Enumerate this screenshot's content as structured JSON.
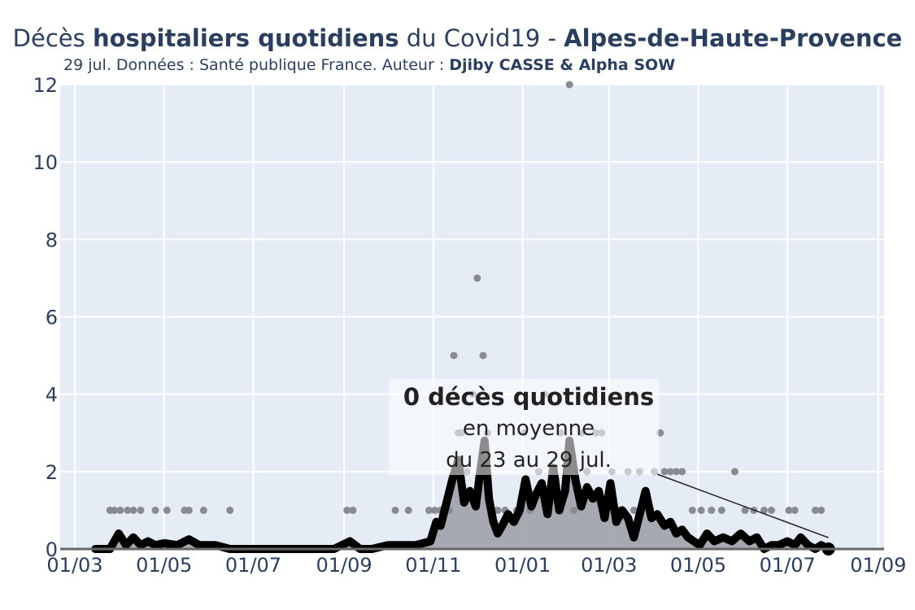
{
  "header": {
    "title_part1": "Décès ",
    "title_part2": "hospitaliers quotidiens",
    "title_part3": " du Covid19 - ",
    "title_part4": "Alpes-de-Haute-Provence",
    "subtitle_plain": "29 jul. Données : Santé publique France. Auteur : ",
    "subtitle_bold": "Djiby CASSE & Alpha SOW"
  },
  "colors": {
    "plot_bg": "#e5ecf6",
    "grid": "#ffffff",
    "line": "#000000",
    "area": "#9b9ea4",
    "points": "#888b91",
    "axis": "#2a3f5f"
  },
  "chart_data": {
    "type": "line",
    "title": "Décès hospitaliers quotidiens du Covid19 - Alpes-de-Haute-Provence",
    "subtitle": "29 jul. Données : Santé publique France. Auteur : Djiby CASSE & Alpha SOW",
    "xlabel": "",
    "ylabel": "",
    "x_range": [
      "2020-02-20",
      "2021-09-05"
    ],
    "ylim": [
      0,
      12
    ],
    "x_ticks": [
      "2020-03-01",
      "2020-05-01",
      "2020-07-01",
      "2020-09-01",
      "2020-11-01",
      "2021-01-01",
      "2021-03-01",
      "2021-05-01",
      "2021-07-01",
      "2021-09-01"
    ],
    "x_tick_labels": [
      "01/03",
      "01/05",
      "01/07",
      "01/09",
      "01/11",
      "01/01",
      "01/03",
      "01/05",
      "01/07",
      "01/09"
    ],
    "y_ticks": [
      0,
      2,
      4,
      6,
      8,
      10,
      12
    ],
    "grid": true,
    "series": [
      {
        "kind": "rolling_mean",
        "x": [
          "2020-03-15",
          "2020-03-25",
          "2020-03-31",
          "2020-04-05",
          "2020-04-10",
          "2020-04-15",
          "2020-04-20",
          "2020-04-25",
          "2020-05-01",
          "2020-05-10",
          "2020-05-18",
          "2020-05-25",
          "2020-06-05",
          "2020-06-15",
          "2020-06-25",
          "2020-07-05",
          "2020-08-01",
          "2020-08-25",
          "2020-09-05",
          "2020-09-12",
          "2020-09-20",
          "2020-10-01",
          "2020-10-10",
          "2020-10-20",
          "2020-10-30",
          "2020-11-03",
          "2020-11-06",
          "2020-11-10",
          "2020-11-14",
          "2020-11-18",
          "2020-11-22",
          "2020-11-26",
          "2020-11-30",
          "2020-12-03",
          "2020-12-06",
          "2020-12-09",
          "2020-12-12",
          "2020-12-15",
          "2020-12-18",
          "2020-12-22",
          "2020-12-26",
          "2020-12-30",
          "2021-01-03",
          "2021-01-07",
          "2021-01-10",
          "2021-01-14",
          "2021-01-18",
          "2021-01-22",
          "2021-01-26",
          "2021-01-30",
          "2021-02-02",
          "2021-02-06",
          "2021-02-10",
          "2021-02-14",
          "2021-02-18",
          "2021-02-22",
          "2021-02-26",
          "2021-03-02",
          "2021-03-06",
          "2021-03-10",
          "2021-03-14",
          "2021-03-18",
          "2021-03-22",
          "2021-03-26",
          "2021-03-30",
          "2021-04-03",
          "2021-04-08",
          "2021-04-12",
          "2021-04-16",
          "2021-04-20",
          "2021-04-24",
          "2021-04-28",
          "2021-05-02",
          "2021-05-07",
          "2021-05-12",
          "2021-05-18",
          "2021-05-24",
          "2021-05-30",
          "2021-06-05",
          "2021-06-10",
          "2021-06-15",
          "2021-06-20",
          "2021-06-25",
          "2021-07-01",
          "2021-07-06",
          "2021-07-10",
          "2021-07-15",
          "2021-07-20",
          "2021-07-24",
          "2021-07-29"
        ],
        "values": [
          0,
          0,
          0.4,
          0.1,
          0.3,
          0.1,
          0.2,
          0.1,
          0.15,
          0.1,
          0.25,
          0.1,
          0.1,
          0,
          0,
          0,
          0,
          0,
          0.2,
          0,
          0,
          0.1,
          0.1,
          0.1,
          0.2,
          0.7,
          0.6,
          1.2,
          1.8,
          2.3,
          1.2,
          1.5,
          1.1,
          2.0,
          2.8,
          1.3,
          0.7,
          0.4,
          0.6,
          0.9,
          0.7,
          1.0,
          1.8,
          1.1,
          1.4,
          1.7,
          0.9,
          2.1,
          1.0,
          1.5,
          2.8,
          1.8,
          1.1,
          1.6,
          1.3,
          1.5,
          0.8,
          1.7,
          0.7,
          1.0,
          0.8,
          0.3,
          0.9,
          1.5,
          0.8,
          0.9,
          0.6,
          0.7,
          0.4,
          0.5,
          0.3,
          0.2,
          0.1,
          0.4,
          0.2,
          0.3,
          0.2,
          0.4,
          0.2,
          0.3,
          0,
          0.1,
          0.1,
          0.2,
          0.1,
          0.3,
          0.1,
          0,
          0.1,
          0
        ]
      },
      {
        "kind": "daily_points",
        "x": [
          "2020-03-25",
          "2020-03-28",
          "2020-04-01",
          "2020-04-06",
          "2020-04-10",
          "2020-04-15",
          "2020-04-25",
          "2020-05-03",
          "2020-05-15",
          "2020-05-18",
          "2020-05-28",
          "2020-06-15",
          "2020-09-03",
          "2020-09-07",
          "2020-10-06",
          "2020-10-15",
          "2020-10-29",
          "2020-11-02",
          "2020-11-06",
          "2020-11-12",
          "2020-11-15",
          "2020-11-18",
          "2020-11-20",
          "2020-11-24",
          "2020-11-28",
          "2020-12-01",
          "2020-12-05",
          "2020-12-08",
          "2020-12-12",
          "2020-12-15",
          "2020-12-20",
          "2020-12-28",
          "2021-01-02",
          "2021-01-06",
          "2021-01-12",
          "2021-01-16",
          "2021-01-21",
          "2021-01-27",
          "2021-02-02",
          "2021-02-05",
          "2021-02-10",
          "2021-02-14",
          "2021-02-20",
          "2021-02-24",
          "2021-03-03",
          "2021-03-08",
          "2021-03-14",
          "2021-03-18",
          "2021-03-22",
          "2021-03-28",
          "2021-04-01",
          "2021-04-05",
          "2021-04-08",
          "2021-04-12",
          "2021-04-16",
          "2021-04-20",
          "2021-04-27",
          "2021-05-03",
          "2021-05-10",
          "2021-05-17",
          "2021-05-26",
          "2021-06-02",
          "2021-06-08",
          "2021-06-15",
          "2021-06-20",
          "2021-07-02",
          "2021-07-06",
          "2021-07-20",
          "2021-07-24"
        ],
        "values": [
          1,
          1,
          1,
          1,
          1,
          1,
          1,
          1,
          1,
          1,
          1,
          1,
          1,
          1,
          1,
          1,
          1,
          1,
          1,
          1,
          5,
          3,
          3,
          2,
          4,
          7,
          5,
          3,
          1,
          1,
          1,
          1,
          3,
          1,
          2,
          4,
          2,
          3,
          12,
          1,
          3,
          2,
          3,
          3,
          2,
          1,
          2,
          1,
          2,
          1,
          2,
          3,
          2,
          2,
          2,
          2,
          1,
          1,
          1,
          1,
          2,
          1,
          1,
          1,
          1,
          1,
          1,
          1,
          1
        ]
      }
    ],
    "annotation": {
      "title": "0 décès quotidiens",
      "line1": "en moyenne",
      "line2": "du 23 au 29 jul.",
      "arrow_to_x": "2021-07-29",
      "arrow_to_y": 0
    }
  }
}
